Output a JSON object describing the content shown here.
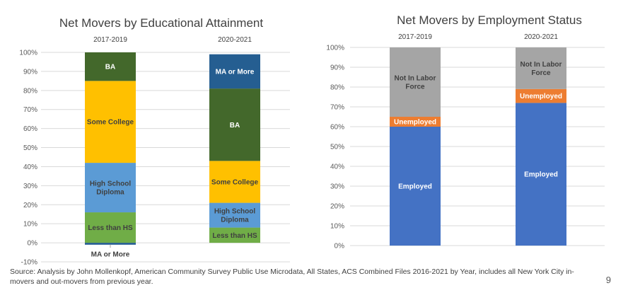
{
  "chart_data": [
    {
      "type": "bar",
      "stacked": true,
      "title": "Net Movers by Educational Attainment",
      "categories": [
        "2017-2019",
        "2020-2021"
      ],
      "ylim": [
        -10,
        100
      ],
      "y_ticks": [
        "-10%",
        "0%",
        "10%",
        "20%",
        "30%",
        "40%",
        "50%",
        "60%",
        "70%",
        "80%",
        "90%",
        "100%"
      ],
      "grid": true,
      "series": [
        {
          "name": "MA or More",
          "values": [
            -1,
            18
          ],
          "color": "#255e91",
          "label_color": "#ffffff",
          "labels": [
            "MA or More",
            "MA or More"
          ]
        },
        {
          "name": "BA",
          "values": [
            15,
            38
          ],
          "color": "#43682b",
          "label_color": "#ffffff",
          "labels": [
            "BA",
            "BA"
          ]
        },
        {
          "name": "Some College",
          "values": [
            43,
            22
          ],
          "color": "#ffc000",
          "label_color": "#404040",
          "labels": [
            "Some College",
            "Some College"
          ]
        },
        {
          "name": "High School Diploma",
          "values": [
            26,
            13
          ],
          "color": "#5b9bd5",
          "label_color": "#404040",
          "labels": [
            "High School\nDiploma",
            "High School\nDiploma"
          ]
        },
        {
          "name": "Less than HS",
          "values": [
            16,
            8
          ],
          "color": "#70ad47",
          "label_color": "#404040",
          "labels": [
            "Less than HS",
            "Less than HS"
          ]
        }
      ]
    },
    {
      "type": "bar",
      "stacked": true,
      "title": "Net Movers by Employment Status",
      "categories": [
        "2017-2019",
        "2020-2021"
      ],
      "ylim": [
        0,
        100
      ],
      "y_ticks": [
        "0%",
        "10%",
        "20%",
        "30%",
        "40%",
        "50%",
        "60%",
        "70%",
        "80%",
        "90%",
        "100%"
      ],
      "grid": true,
      "series": [
        {
          "name": "Not In Labor Force",
          "values": [
            35,
            21
          ],
          "color": "#a5a5a5",
          "label_color": "#404040",
          "labels": [
            "Not In Labor\nForce",
            "Not In Labor\nForce"
          ]
        },
        {
          "name": "Unemployed",
          "values": [
            5,
            7
          ],
          "color": "#ed7d31",
          "label_color": "#ffffff",
          "labels": [
            "Unemployed",
            "Unemployed"
          ]
        },
        {
          "name": "Employed",
          "values": [
            60,
            72
          ],
          "color": "#4472c4",
          "label_color": "#ffffff",
          "labels": [
            "Employed",
            "Employed"
          ]
        }
      ]
    }
  ],
  "footer": {
    "source": "Source: Analysis by John Mollenkopf, American Community Survey Public Use Microdata, All States, ACS Combined Files 2016-2021 by Year, includes all New York City in-movers and out-movers from previous year.",
    "page_number": "9"
  }
}
